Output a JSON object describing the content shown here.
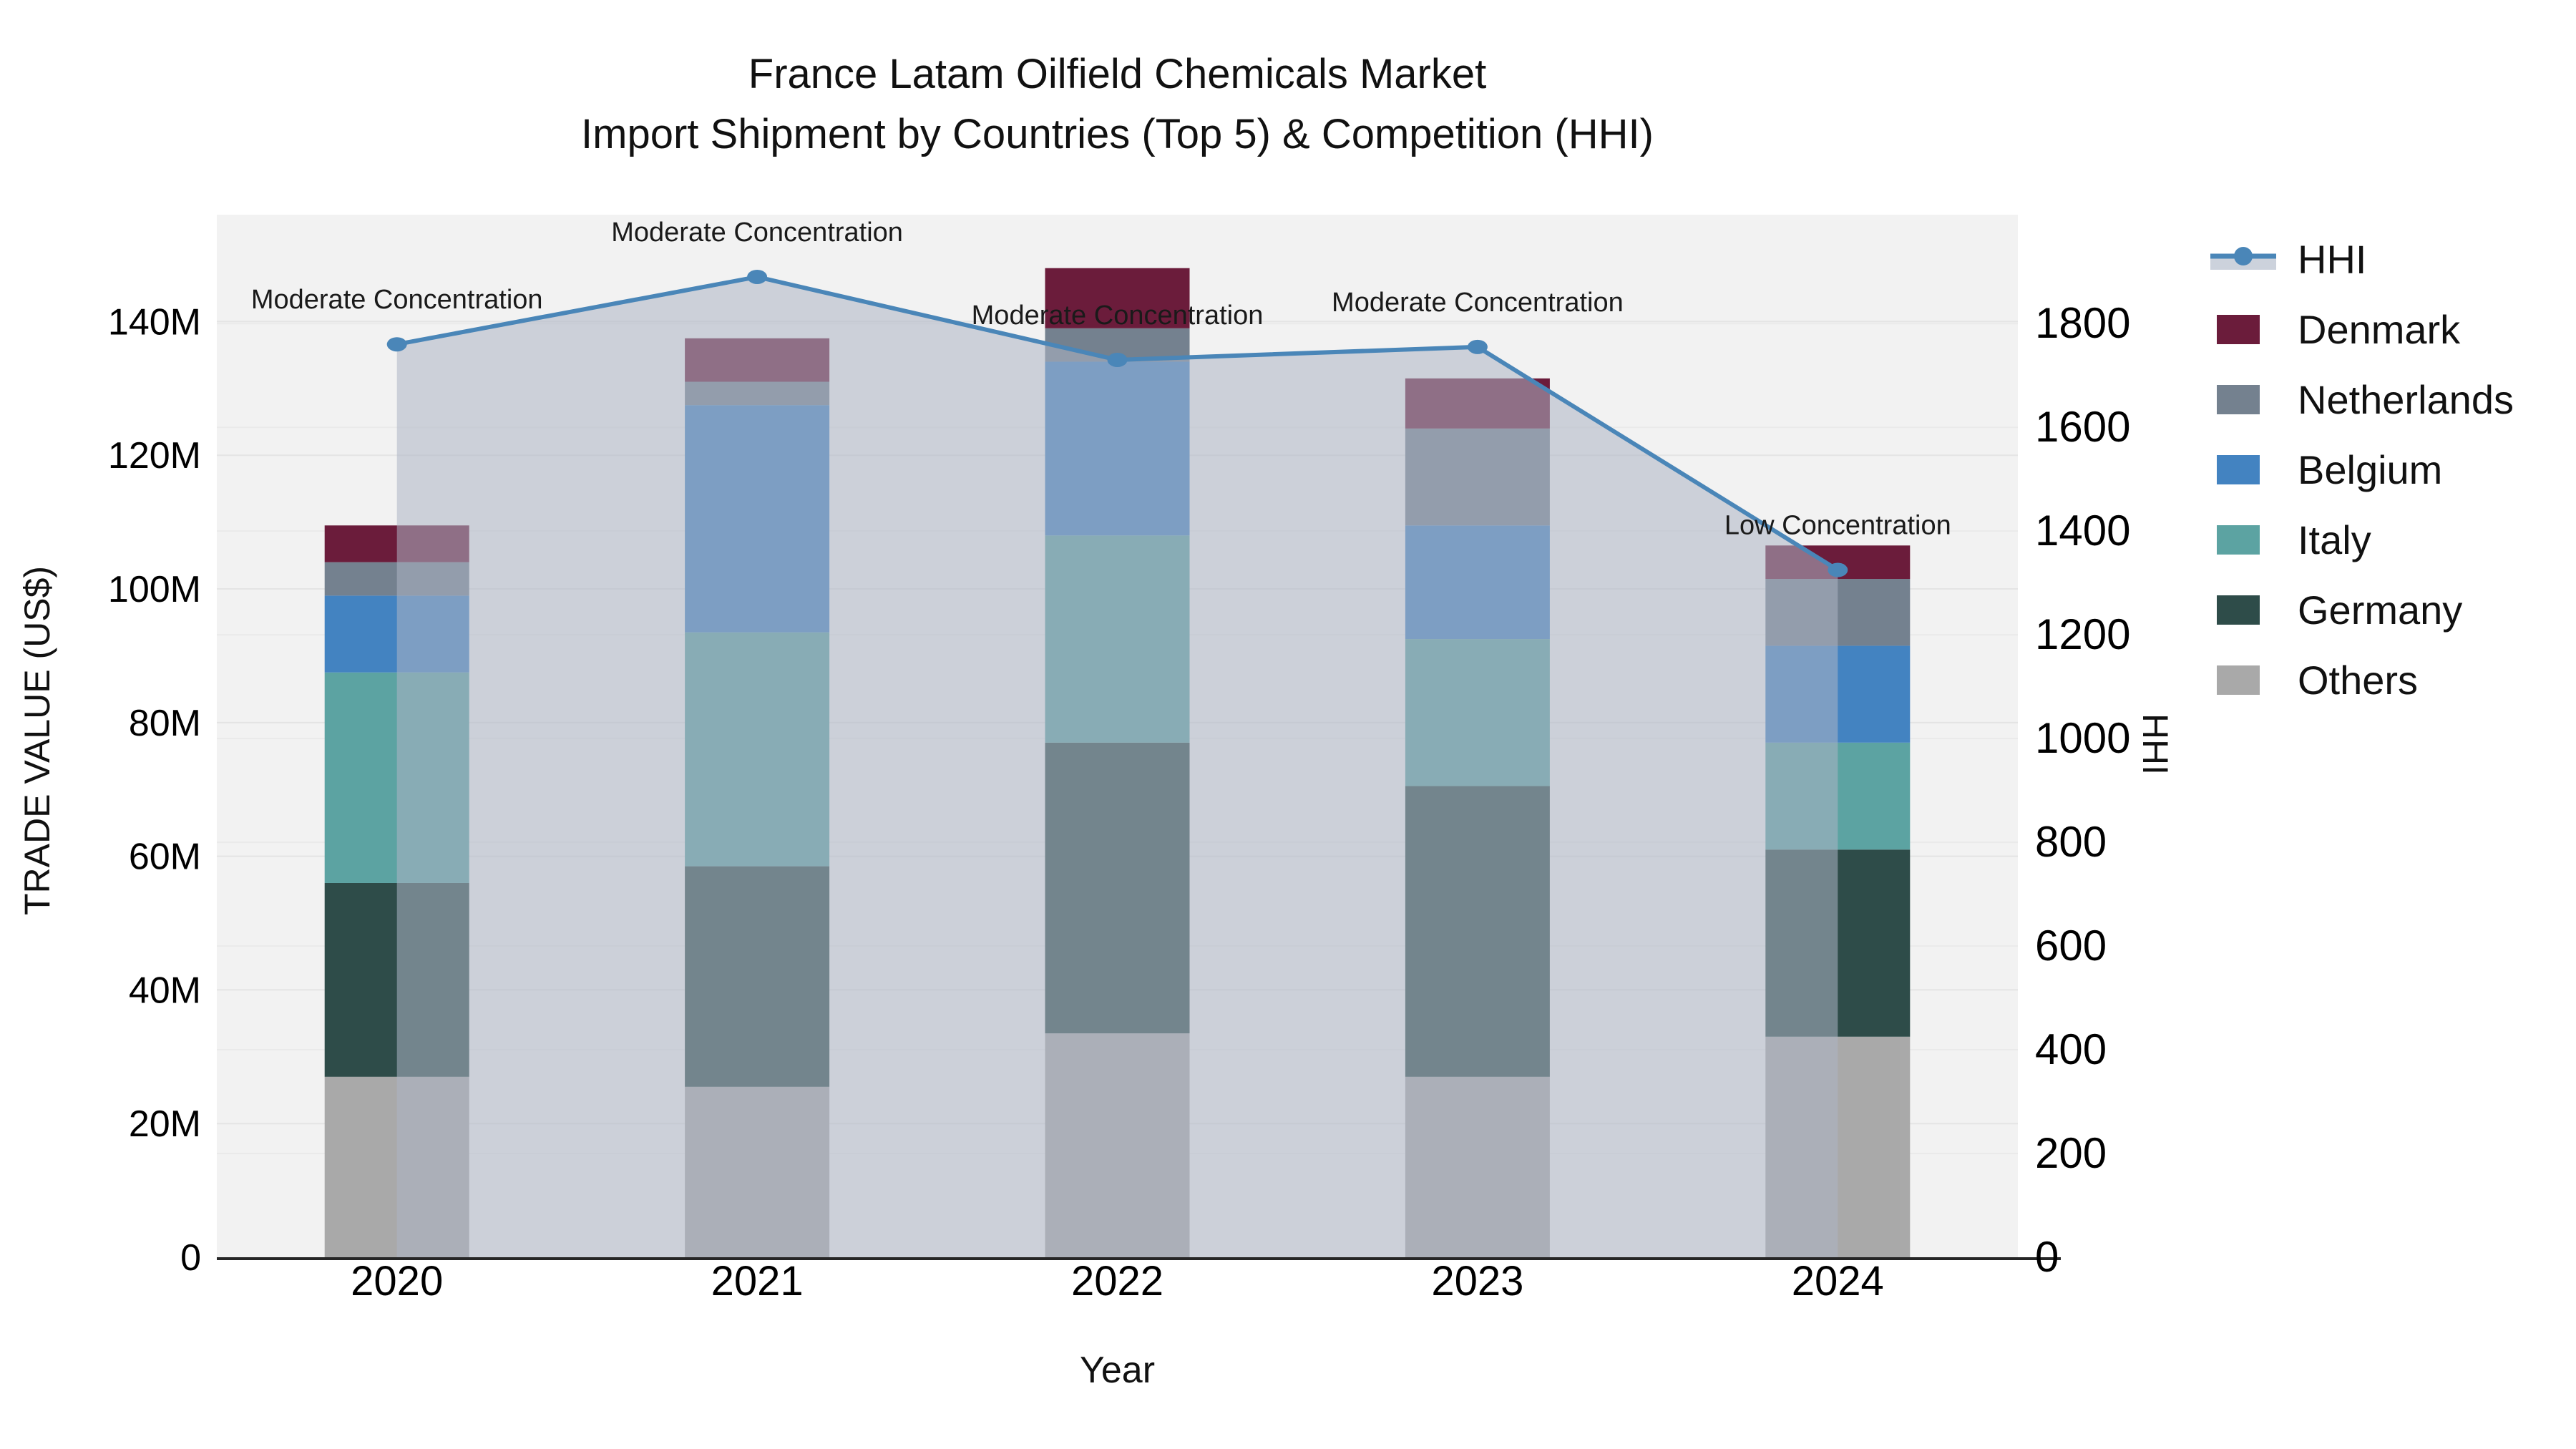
{
  "title": {
    "line1": "France Latam Oilfield Chemicals Market",
    "line2": "Import Shipment by Countries (Top 5) & Competition (HHI)"
  },
  "chart_data": {
    "type": "combo: stacked bar (left axis) + line with markers and area fill (right axis)",
    "categories": [
      "2020",
      "2021",
      "2022",
      "2023",
      "2024"
    ],
    "unit_left": "M US$",
    "axes": {
      "x_label": "Year",
      "left_label": "TRADE VALUE (US$)",
      "right_label": "HHI",
      "left_max": 156,
      "right_max": 2010,
      "left_ticks": [
        {
          "v": 0,
          "label": "0"
        },
        {
          "v": 20,
          "label": "20M"
        },
        {
          "v": 40,
          "label": "40M"
        },
        {
          "v": 60,
          "label": "60M"
        },
        {
          "v": 80,
          "label": "80M"
        },
        {
          "v": 100,
          "label": "100M"
        },
        {
          "v": 120,
          "label": "120M"
        },
        {
          "v": 140,
          "label": "140M"
        }
      ],
      "right_ticks": [
        {
          "v": 0,
          "label": "0"
        },
        {
          "v": 200,
          "label": "200"
        },
        {
          "v": 400,
          "label": "400"
        },
        {
          "v": 600,
          "label": "600"
        },
        {
          "v": 800,
          "label": "800"
        },
        {
          "v": 1000,
          "label": "1000"
        },
        {
          "v": 1200,
          "label": "1200"
        },
        {
          "v": 1400,
          "label": "1400"
        },
        {
          "v": 1600,
          "label": "1600"
        },
        {
          "v": 1800,
          "label": "1800"
        }
      ],
      "grid": "on"
    },
    "series": [
      {
        "name": "Others",
        "color": "#a9a9a9",
        "values": [
          27,
          25.5,
          33.5,
          27,
          33
        ]
      },
      {
        "name": "Germany",
        "color": "#2e4c49",
        "values": [
          29,
          33,
          43.5,
          43.5,
          28
        ]
      },
      {
        "name": "Italy",
        "color": "#5ca3a2",
        "values": [
          31.5,
          35,
          31,
          22,
          16
        ]
      },
      {
        "name": "Belgium",
        "color": "#4383c1",
        "values": [
          11.5,
          34,
          26,
          17,
          14.5
        ]
      },
      {
        "name": "Netherlands",
        "color": "#74818f",
        "values": [
          5,
          3.5,
          5,
          14.5,
          10
        ]
      },
      {
        "name": "Denmark",
        "color": "#6b1c3b",
        "values": [
          5.5,
          6.5,
          9,
          7.5,
          5
        ]
      }
    ],
    "bar_totals": [
      109.5,
      137.5,
      148,
      131.5,
      106.5
    ],
    "hhi": {
      "name": "HHI",
      "line_color": "#4a86b8",
      "band_color": "#ccd2dc",
      "area_color": "rgba(173,181,197,0.55)",
      "values": [
        1760,
        1890,
        1730,
        1755,
        1325
      ]
    },
    "annotations": [
      "Moderate Concentration",
      "Moderate Concentration",
      "Moderate Concentration",
      "Moderate Concentration",
      "Low Concentration"
    ],
    "plot_bg": "#f2f2f2",
    "gridline_color": "#e4e4e4",
    "axis_line_color": "#262626",
    "legend_position": "right"
  },
  "legend": {
    "items": [
      {
        "label": "HHI",
        "key": "hhi"
      },
      {
        "label": "Denmark",
        "key": "series"
      },
      {
        "label": "Netherlands",
        "key": "series"
      },
      {
        "label": "Belgium",
        "key": "series"
      },
      {
        "label": "Italy",
        "key": "series"
      },
      {
        "label": "Germany",
        "key": "series"
      },
      {
        "label": "Others",
        "key": "series"
      }
    ]
  }
}
